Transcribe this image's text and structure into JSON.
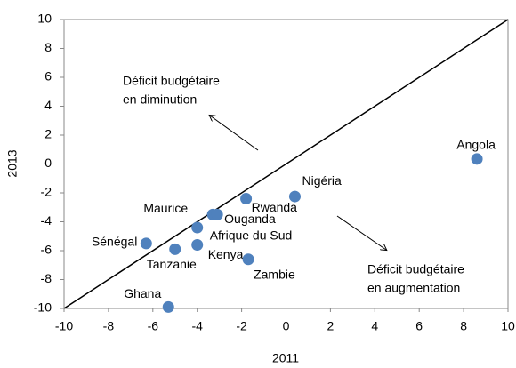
{
  "chart_data": {
    "type": "scatter",
    "x_label": "2011",
    "y_label": "2013",
    "xlim": [
      -10,
      10
    ],
    "ylim": [
      -10,
      10
    ],
    "xticks": [
      -10,
      -8,
      -6,
      -4,
      -2,
      0,
      2,
      4,
      6,
      8,
      10
    ],
    "yticks": [
      -10,
      -8,
      -6,
      -4,
      -2,
      0,
      2,
      4,
      6,
      8,
      10
    ],
    "color": "#4f81bd",
    "points": [
      {
        "label": "Angola",
        "x": 8.6,
        "y": 0.35
      },
      {
        "label": "Nigéria",
        "x": 0.4,
        "y": -2.25
      },
      {
        "label": "Rwanda",
        "x": -1.8,
        "y": -2.4
      },
      {
        "label": "Maurice",
        "x": -3.3,
        "y": -3.5
      },
      {
        "label": "Ouganda",
        "x": -3.1,
        "y": -3.5
      },
      {
        "label": "Afrique du Sud",
        "x": -4,
        "y": -4.4
      },
      {
        "label": "Kenya",
        "x": -4,
        "y": -5.6
      },
      {
        "label": "Tanzanie",
        "x": -5,
        "y": -5.9
      },
      {
        "label": "Sénégal",
        "x": -6.3,
        "y": -5.5
      },
      {
        "label": "Zambie",
        "x": -1.7,
        "y": -6.6
      },
      {
        "label": "Ghana",
        "x": -5.3,
        "y": -9.9
      }
    ],
    "annotations": [
      {
        "lines": [
          "Déficit budgétaire",
          "en diminution"
        ]
      },
      {
        "lines": [
          "Déficit budgétaire",
          "en augmentation"
        ]
      }
    ]
  }
}
